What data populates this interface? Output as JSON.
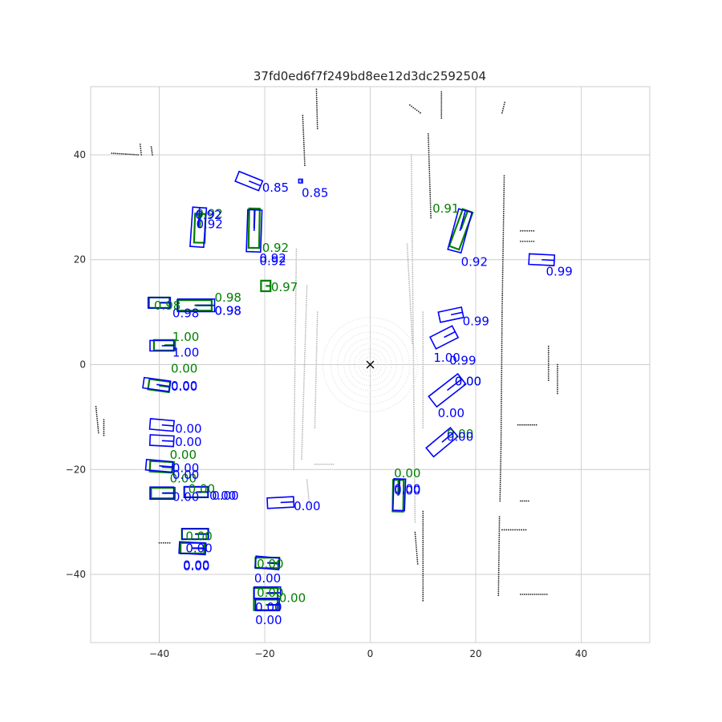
{
  "chart_data": {
    "type": "scatter",
    "title": "37fd0ed6f7f249bd8ee12d3dc2592504",
    "xlim": [
      -53,
      53
    ],
    "ylim": [
      -53,
      53
    ],
    "x_ticks": [
      -40,
      -20,
      0,
      20,
      40
    ],
    "y_ticks": [
      -40,
      -20,
      0,
      20,
      40
    ],
    "tick_labels": {
      "x": [
        "−40",
        "−20",
        "0",
        "20",
        "40"
      ],
      "y": [
        "−40",
        "−20",
        "0",
        "20",
        "40"
      ]
    },
    "grid": true,
    "colors": {
      "gt": "#008000",
      "pred": "#0000ff",
      "points_far": "#222222",
      "points_near": "#b8b8b8",
      "ego": "#000000"
    },
    "ego": {
      "x": 0,
      "y": 0,
      "marker": "x"
    },
    "gt_boxes": [
      {
        "x": 17.2,
        "y": 25.8,
        "w": 2.0,
        "l": 7.5,
        "yaw": 70
      },
      {
        "x": -22.0,
        "y": 26.0,
        "w": 2.0,
        "l": 7.5,
        "yaw": 89
      },
      {
        "x": -32.3,
        "y": 26.0,
        "w": 2.0,
        "l": 5.5,
        "yaw": 88
      },
      {
        "x": -19.8,
        "y": 15.0,
        "w": 2.0,
        "l": 1.8,
        "yaw": 0
      },
      {
        "x": -40.0,
        "y": 11.8,
        "w": 2.0,
        "l": 3.9,
        "yaw": 0
      },
      {
        "x": -33.3,
        "y": 11.3,
        "w": 2.0,
        "l": 6.5,
        "yaw": 0
      },
      {
        "x": -39.0,
        "y": 3.7,
        "w": 2.0,
        "l": 4.0,
        "yaw": 0
      },
      {
        "x": -40.0,
        "y": -4.0,
        "w": 2.0,
        "l": 4.0,
        "yaw": -8
      },
      {
        "x": -39.5,
        "y": -19.5,
        "w": 2.0,
        "l": 4.5,
        "yaw": -3
      },
      {
        "x": -39.3,
        "y": -24.5,
        "w": 2.0,
        "l": 4.5,
        "yaw": 0
      },
      {
        "x": -33.0,
        "y": -24.3,
        "w": 2.0,
        "l": 4.5,
        "yaw": 0
      },
      {
        "x": 5.3,
        "y": -25.0,
        "w": 2.0,
        "l": 6.0,
        "yaw": 89
      },
      {
        "x": -33.2,
        "y": -32.3,
        "w": 2.0,
        "l": 5.0,
        "yaw": 0
      },
      {
        "x": -33.7,
        "y": -35.0,
        "w": 2.0,
        "l": 4.5,
        "yaw": 0
      },
      {
        "x": -19.5,
        "y": -37.8,
        "w": 2.0,
        "l": 4.5,
        "yaw": 0
      },
      {
        "x": -19.8,
        "y": -43.6,
        "w": 2.0,
        "l": 4.5,
        "yaw": 0
      },
      {
        "x": -19.8,
        "y": -45.8,
        "w": 2.0,
        "l": 4.5,
        "yaw": 0
      }
    ],
    "pred_boxes": [
      {
        "x": -23.0,
        "y": 35.0,
        "w": 2.0,
        "l": 4.8,
        "yaw": -22
      },
      {
        "x": -13.2,
        "y": 35.0,
        "w": 0.7,
        "l": 0.7,
        "yaw": 0
      },
      {
        "x": 17.0,
        "y": 25.5,
        "w": 2.6,
        "l": 8.0,
        "yaw": 75
      },
      {
        "x": -22.0,
        "y": 25.5,
        "w": 2.7,
        "l": 8.0,
        "yaw": 88
      },
      {
        "x": -32.6,
        "y": 26.2,
        "w": 2.6,
        "l": 7.5,
        "yaw": 86
      },
      {
        "x": 32.5,
        "y": 20.0,
        "w": 2.0,
        "l": 4.8,
        "yaw": -3
      },
      {
        "x": -33.0,
        "y": 11.3,
        "w": 2.4,
        "l": 7.0,
        "yaw": 0
      },
      {
        "x": -40.0,
        "y": 11.8,
        "w": 2.0,
        "l": 4.2,
        "yaw": 0
      },
      {
        "x": 15.3,
        "y": 9.5,
        "w": 2.0,
        "l": 4.5,
        "yaw": 12
      },
      {
        "x": 14.0,
        "y": 5.2,
        "w": 2.5,
        "l": 4.7,
        "yaw": 27
      },
      {
        "x": -39.5,
        "y": 3.6,
        "w": 2.0,
        "l": 4.5,
        "yaw": 0
      },
      {
        "x": -40.5,
        "y": -3.8,
        "w": 2.0,
        "l": 5.0,
        "yaw": -8
      },
      {
        "x": 14.6,
        "y": -4.9,
        "w": 2.5,
        "l": 7.0,
        "yaw": 38
      },
      {
        "x": -39.5,
        "y": -11.5,
        "w": 2.0,
        "l": 4.5,
        "yaw": -5
      },
      {
        "x": -39.5,
        "y": -14.5,
        "w": 2.0,
        "l": 4.5,
        "yaw": -3
      },
      {
        "x": 13.6,
        "y": -14.8,
        "w": 2.2,
        "l": 6.0,
        "yaw": 40
      },
      {
        "x": -40.0,
        "y": -19.3,
        "w": 2.0,
        "l": 5.0,
        "yaw": -5
      },
      {
        "x": -39.5,
        "y": -24.5,
        "w": 2.3,
        "l": 4.5,
        "yaw": 0
      },
      {
        "x": -33.0,
        "y": -24.3,
        "w": 2.0,
        "l": 4.5,
        "yaw": 0
      },
      {
        "x": -17.0,
        "y": -26.3,
        "w": 2.0,
        "l": 5.0,
        "yaw": 3
      },
      {
        "x": 5.5,
        "y": -24.8,
        "w": 2.2,
        "l": 6.0,
        "yaw": 88
      },
      {
        "x": -33.2,
        "y": -32.3,
        "w": 2.0,
        "l": 5.0,
        "yaw": 0
      },
      {
        "x": -33.7,
        "y": -35.0,
        "w": 2.2,
        "l": 5.0,
        "yaw": -3
      },
      {
        "x": -19.5,
        "y": -37.8,
        "w": 2.2,
        "l": 4.5,
        "yaw": -5
      },
      {
        "x": -19.5,
        "y": -43.5,
        "w": 2.2,
        "l": 5.0,
        "yaw": 0
      },
      {
        "x": -19.5,
        "y": -45.8,
        "w": 2.2,
        "l": 4.5,
        "yaw": 0
      }
    ],
    "score_labels": [
      {
        "x": -20.5,
        "y": 33.0,
        "text": "0.85",
        "series": "pred"
      },
      {
        "x": -13.0,
        "y": 32.0,
        "text": "0.85",
        "series": "pred"
      },
      {
        "x": 11.8,
        "y": 29.0,
        "text": "0.91",
        "series": "gt"
      },
      {
        "x": -33.0,
        "y": 28.0,
        "text": "0.92",
        "series": "gt"
      },
      {
        "x": -33.0,
        "y": 26.0,
        "text": "0.92",
        "series": "pred"
      },
      {
        "x": -33.2,
        "y": 27.8,
        "text": "0.92",
        "series": "pred"
      },
      {
        "x": -20.5,
        "y": 21.5,
        "text": "0.92",
        "series": "gt"
      },
      {
        "x": -21.0,
        "y": 19.0,
        "text": "0.92",
        "series": "pred"
      },
      {
        "x": -21.0,
        "y": 19.5,
        "text": "0.92",
        "series": "pred"
      },
      {
        "x": 17.2,
        "y": 18.8,
        "text": "0.92",
        "series": "pred"
      },
      {
        "x": 33.3,
        "y": 17.0,
        "text": "0.99",
        "series": "pred"
      },
      {
        "x": -18.8,
        "y": 14.0,
        "text": "0.97",
        "series": "gt"
      },
      {
        "x": -29.5,
        "y": 12.0,
        "text": "0.98",
        "series": "gt"
      },
      {
        "x": -29.5,
        "y": 9.5,
        "text": "0.98",
        "series": "pred"
      },
      {
        "x": -29.5,
        "y": 9.5,
        "text": "0.98",
        "series": "pred"
      },
      {
        "x": -41.0,
        "y": 10.5,
        "text": "0.98",
        "series": "gt"
      },
      {
        "x": -37.5,
        "y": 9.0,
        "text": "0.98",
        "series": "pred"
      },
      {
        "x": 17.5,
        "y": 7.5,
        "text": "0.99",
        "series": "pred"
      },
      {
        "x": -37.5,
        "y": 4.5,
        "text": "1.00",
        "series": "gt"
      },
      {
        "x": -37.5,
        "y": 1.5,
        "text": "1.00",
        "series": "pred"
      },
      {
        "x": 12.0,
        "y": 0.5,
        "text": "1.00",
        "series": "pred"
      },
      {
        "x": 15.0,
        "y": 0.0,
        "text": "0.99",
        "series": "pred"
      },
      {
        "x": -37.8,
        "y": -1.5,
        "text": "0.00",
        "series": "gt"
      },
      {
        "x": -37.8,
        "y": -4.8,
        "text": "0.00",
        "series": "pred"
      },
      {
        "x": -37.8,
        "y": -5.0,
        "text": "0.00",
        "series": "pred"
      },
      {
        "x": 16.0,
        "y": -4.0,
        "text": "0.00",
        "series": "gt"
      },
      {
        "x": 16.0,
        "y": -4.0,
        "text": "0.00",
        "series": "pred"
      },
      {
        "x": 12.8,
        "y": -10.0,
        "text": "0.00",
        "series": "pred"
      },
      {
        "x": -37.0,
        "y": -13.0,
        "text": "0.00",
        "series": "pred"
      },
      {
        "x": -37.0,
        "y": -15.5,
        "text": "0.00",
        "series": "pred"
      },
      {
        "x": 14.5,
        "y": -14.0,
        "text": "0.00",
        "series": "gt"
      },
      {
        "x": 14.5,
        "y": -14.5,
        "text": "0.00",
        "series": "pred"
      },
      {
        "x": -38.0,
        "y": -18.0,
        "text": "0.00",
        "series": "gt"
      },
      {
        "x": -37.5,
        "y": -20.5,
        "text": "0.00",
        "series": "pred"
      },
      {
        "x": -38.0,
        "y": -22.5,
        "text": "0.00",
        "series": "gt"
      },
      {
        "x": -37.5,
        "y": -21.8,
        "text": "0.00",
        "series": "pred"
      },
      {
        "x": -37.5,
        "y": -26.0,
        "text": "0.00",
        "series": "pred"
      },
      {
        "x": -34.5,
        "y": -24.5,
        "text": "0.00",
        "series": "gt"
      },
      {
        "x": -30.5,
        "y": -25.8,
        "text": "0.00",
        "series": "pred"
      },
      {
        "x": -30.0,
        "y": -25.8,
        "text": "0.00",
        "series": "pred"
      },
      {
        "x": 4.5,
        "y": -21.5,
        "text": "0.00",
        "series": "gt"
      },
      {
        "x": 4.5,
        "y": -24.5,
        "text": "0.00",
        "series": "pred"
      },
      {
        "x": 4.5,
        "y": -24.8,
        "text": "0.00",
        "series": "pred"
      },
      {
        "x": -14.5,
        "y": -27.8,
        "text": "0.00",
        "series": "pred"
      },
      {
        "x": -35.0,
        "y": -33.5,
        "text": "0.00",
        "series": "gt"
      },
      {
        "x": -35.0,
        "y": -35.8,
        "text": "0.00",
        "series": "pred"
      },
      {
        "x": -35.5,
        "y": -39.0,
        "text": "0.00",
        "series": "pred"
      },
      {
        "x": -35.5,
        "y": -39.2,
        "text": "0.00",
        "series": "pred"
      },
      {
        "x": -21.5,
        "y": -38.8,
        "text": "0.00",
        "series": "gt"
      },
      {
        "x": -22.0,
        "y": -41.5,
        "text": "0.00",
        "series": "pred"
      },
      {
        "x": -21.5,
        "y": -44.3,
        "text": "0.00",
        "series": "gt"
      },
      {
        "x": -17.3,
        "y": -45.3,
        "text": "0.00",
        "series": "gt"
      },
      {
        "x": -21.8,
        "y": -47.0,
        "text": "0.00",
        "series": "pred"
      },
      {
        "x": -21.8,
        "y": -49.5,
        "text": "0.00",
        "series": "pred"
      }
    ],
    "point_cloud": {
      "far_points": [
        {
          "x0": -49,
          "y0": 40.3,
          "x1": -44,
          "y1": 40.0
        },
        {
          "x0": -43.6,
          "y0": 42.0,
          "x1": -43.4,
          "y1": 40.0
        },
        {
          "x0": -41.5,
          "y0": 41.5,
          "x1": -41.3,
          "y1": 40.0
        },
        {
          "x0": -12.8,
          "y0": 47.5,
          "x1": -12.4,
          "y1": 38.0
        },
        {
          "x0": -10.2,
          "y0": 52.5,
          "x1": -10.0,
          "y1": 45.0
        },
        {
          "x0": 7.5,
          "y0": 49.5,
          "x1": 9.5,
          "y1": 48.0
        },
        {
          "x0": 11.0,
          "y0": 44.0,
          "x1": 11.5,
          "y1": 28.0
        },
        {
          "x0": 13.5,
          "y0": 52.0,
          "x1": 13.5,
          "y1": 47.0
        },
        {
          "x0": 25.5,
          "y0": 50.0,
          "x1": 25.0,
          "y1": 48.0
        },
        {
          "x0": 25.4,
          "y0": 36.0,
          "x1": 25.0,
          "y1": 10.0
        },
        {
          "x0": 25.0,
          "y0": 10.0,
          "x1": 24.8,
          "y1": -15.0
        },
        {
          "x0": 24.8,
          "y0": -15.0,
          "x1": 24.6,
          "y1": -26.0
        },
        {
          "x0": 28.5,
          "y0": 25.5,
          "x1": 31.0,
          "y1": 25.5
        },
        {
          "x0": 28.5,
          "y0": 23.5,
          "x1": 31.0,
          "y1": 23.5
        },
        {
          "x0": 24.5,
          "y0": -29.0,
          "x1": 24.3,
          "y1": -44.0
        },
        {
          "x0": 25.0,
          "y0": -31.5,
          "x1": 29.5,
          "y1": -31.5
        },
        {
          "x0": 28.5,
          "y0": -43.8,
          "x1": 33.5,
          "y1": -43.8
        },
        {
          "x0": 33.8,
          "y0": 3.5,
          "x1": 33.8,
          "y1": -3.0
        },
        {
          "x0": 35.5,
          "y0": 0.0,
          "x1": 35.5,
          "y1": -5.5
        },
        {
          "x0": 28.0,
          "y0": -11.5,
          "x1": 31.5,
          "y1": -11.5
        },
        {
          "x0": 28.5,
          "y0": -26.0,
          "x1": 30.0,
          "y1": -26.0
        },
        {
          "x0": -52.0,
          "y0": -8.0,
          "x1": -51.5,
          "y1": -13.0
        },
        {
          "x0": -50.5,
          "y0": -10.5,
          "x1": -50.5,
          "y1": -13.5
        },
        {
          "x0": -40.0,
          "y0": -34.0,
          "x1": -38.0,
          "y1": -34.0
        },
        {
          "x0": 10.0,
          "y0": -28.0,
          "x1": 10.0,
          "y1": -45.0
        },
        {
          "x0": 8.5,
          "y0": -32.0,
          "x1": 9.0,
          "y1": -38.0
        }
      ],
      "near_points": [
        {
          "x0": -14.0,
          "y0": 22.0,
          "x1": -14.5,
          "y1": -20.0
        },
        {
          "x0": -12.0,
          "y0": 15.0,
          "x1": -13.0,
          "y1": -18.0
        },
        {
          "x0": -10.0,
          "y0": 10.0,
          "x1": -10.5,
          "y1": -12.0
        },
        {
          "x0": 7.8,
          "y0": 40.0,
          "x1": 8.5,
          "y1": -30.0
        },
        {
          "x0": 10.0,
          "y0": 10.0,
          "x1": 10.0,
          "y1": -12.0
        },
        {
          "x0": 7.0,
          "y0": 23.0,
          "x1": 8.0,
          "y1": 4.0
        },
        {
          "x0": -10.5,
          "y0": -19.0,
          "x1": -7.0,
          "y1": -19.0
        },
        {
          "x0": -12.0,
          "y0": -22.0,
          "x1": -11.5,
          "y1": -27.0
        }
      ],
      "rings_r": [
        1.5,
        2.2,
        3.0,
        4.0,
        5.0,
        6.2,
        7.5,
        9.0
      ]
    }
  }
}
